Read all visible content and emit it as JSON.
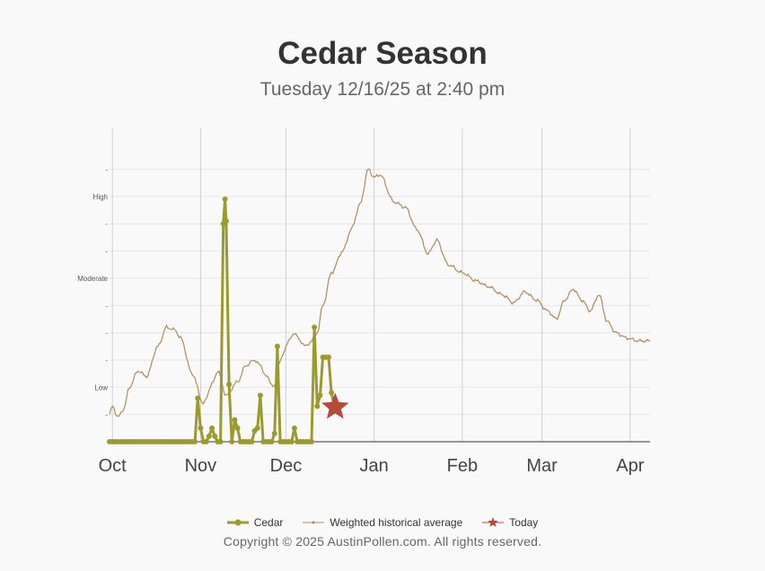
{
  "chart_data": {
    "type": "line",
    "title": "Cedar Season",
    "subtitle": "Tuesday 12/16/25 at 2:40 pm",
    "x_tick_labels": [
      "Oct",
      "Nov",
      "Dec",
      "Jan",
      "Feb",
      "Mar",
      "Apr"
    ],
    "y_tick_labels": [
      "-",
      "High",
      "-",
      "-",
      "Moderate",
      "-",
      "-",
      "-",
      "Low",
      "-"
    ],
    "grid": true,
    "legend_position": "bottom-center",
    "x_domain_days": [
      0,
      190
    ],
    "y_domain": [
      0,
      1.15
    ],
    "series": [
      {
        "name": "Cedar",
        "color": "#9a9a2e",
        "points": [
          [
            0,
            0
          ],
          [
            1,
            0
          ],
          [
            2,
            0
          ],
          [
            3,
            0
          ],
          [
            4,
            0
          ],
          [
            5,
            0
          ],
          [
            6,
            0
          ],
          [
            7,
            0
          ],
          [
            8,
            0
          ],
          [
            9,
            0
          ],
          [
            10,
            0
          ],
          [
            11,
            0
          ],
          [
            12,
            0
          ],
          [
            13,
            0
          ],
          [
            14,
            0
          ],
          [
            15,
            0
          ],
          [
            16,
            0
          ],
          [
            17,
            0
          ],
          [
            18,
            0
          ],
          [
            19,
            0
          ],
          [
            20,
            0
          ],
          [
            21,
            0
          ],
          [
            22,
            0
          ],
          [
            23,
            0
          ],
          [
            24,
            0
          ],
          [
            25,
            0
          ],
          [
            26,
            0
          ],
          [
            27,
            0
          ],
          [
            28,
            0
          ],
          [
            29,
            0
          ],
          [
            30,
            0
          ],
          [
            31,
            0.16
          ],
          [
            32,
            0.05
          ],
          [
            33,
            0
          ],
          [
            34,
            0
          ],
          [
            35,
            0.02
          ],
          [
            36,
            0.05
          ],
          [
            37,
            0.02
          ],
          [
            38,
            0
          ],
          [
            39,
            0
          ],
          [
            40,
            0.8
          ],
          [
            40.6,
            0.89
          ],
          [
            41,
            0.81
          ],
          [
            42,
            0.21
          ],
          [
            43,
            0
          ],
          [
            44,
            0.08
          ],
          [
            45,
            0.05
          ],
          [
            46,
            0
          ],
          [
            47,
            0
          ],
          [
            48,
            0
          ],
          [
            49,
            0
          ],
          [
            50,
            0
          ],
          [
            51,
            0.04
          ],
          [
            52,
            0.05
          ],
          [
            53,
            0.17
          ],
          [
            54,
            0
          ],
          [
            55,
            0
          ],
          [
            56,
            0
          ],
          [
            57,
            0
          ],
          [
            58,
            0.03
          ],
          [
            59,
            0.35
          ],
          [
            60,
            0
          ],
          [
            61,
            0
          ],
          [
            62,
            0
          ],
          [
            63,
            0
          ],
          [
            64,
            0
          ],
          [
            65,
            0.05
          ],
          [
            66,
            0
          ],
          [
            67,
            0
          ],
          [
            68,
            0
          ],
          [
            69,
            0
          ],
          [
            70,
            0
          ],
          [
            71,
            0
          ],
          [
            72,
            0.42
          ],
          [
            73,
            0.13
          ],
          [
            74,
            0.17
          ],
          [
            75,
            0.31
          ],
          [
            76,
            0.31
          ],
          [
            77,
            0.31
          ],
          [
            78,
            0.18
          ],
          [
            79,
            0.13
          ]
        ]
      },
      {
        "name": "Weighted historical average",
        "color": "#b08a5e"
      },
      {
        "name": "Today",
        "color": "#b34a3a",
        "points": [
          [
            79,
            0.13
          ]
        ]
      }
    ]
  },
  "legend": {
    "cedar": "Cedar",
    "historical": "Weighted historical average",
    "today": "Today"
  },
  "copyright": "Copyright © 2025 AustinPollen.com.  All rights reserved."
}
